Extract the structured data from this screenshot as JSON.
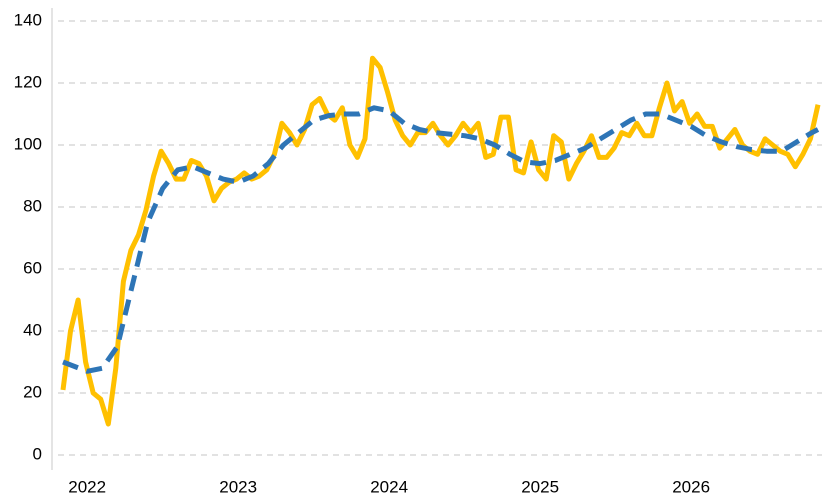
{
  "chart_data": {
    "type": "line",
    "xlim": [
      2021.84,
      2026.88
    ],
    "xticks": [
      2022,
      2023,
      2024,
      2025,
      2026
    ],
    "ylim": [
      0,
      140
    ],
    "yticks": [
      0,
      20,
      40,
      60,
      80,
      100,
      120,
      140
    ],
    "grid": true,
    "series": [
      {
        "color": "#ffc000",
        "style": "solid",
        "x": [
          2021.84,
          2021.89,
          2021.94,
          2021.99,
          2022.04,
          2022.09,
          2022.14,
          2022.19,
          2022.24,
          2022.29,
          2022.34,
          2022.39,
          2022.44,
          2022.49,
          2022.54,
          2022.59,
          2022.64,
          2022.69,
          2022.74,
          2022.79,
          2022.84,
          2022.89,
          2022.94,
          2022.99,
          2023.04,
          2023.09,
          2023.14,
          2023.19,
          2023.24,
          2023.29,
          2023.34,
          2023.39,
          2023.44,
          2023.49,
          2023.54,
          2023.59,
          2023.64,
          2023.69,
          2023.74,
          2023.79,
          2023.84,
          2023.89,
          2023.94,
          2023.99,
          2024.04,
          2024.09,
          2024.14,
          2024.19,
          2024.24,
          2024.29,
          2024.34,
          2024.39,
          2024.44,
          2024.49,
          2024.54,
          2024.59,
          2024.64,
          2024.69,
          2024.74,
          2024.79,
          2024.84,
          2024.89,
          2024.94,
          2024.99,
          2025.04,
          2025.09,
          2025.14,
          2025.19,
          2025.24,
          2025.29,
          2025.34,
          2025.39,
          2025.44,
          2025.49,
          2025.54,
          2025.59,
          2025.64,
          2025.69,
          2025.74,
          2025.79,
          2025.84,
          2025.89,
          2025.94,
          2025.99,
          2026.04,
          2026.09,
          2026.14,
          2026.19,
          2026.24,
          2026.29,
          2026.34,
          2026.39,
          2026.44,
          2026.49,
          2026.54,
          2026.59,
          2026.64,
          2026.69,
          2026.74,
          2026.79,
          2026.84
        ],
        "values": [
          21,
          40,
          50,
          30,
          20,
          18,
          10,
          28,
          56,
          66,
          71,
          79,
          90,
          98,
          94,
          89,
          89,
          95,
          94,
          90,
          82,
          86,
          88,
          89,
          91,
          89,
          90,
          92,
          97,
          107,
          104,
          100,
          105,
          113,
          115,
          110,
          108,
          112,
          100,
          96,
          102,
          128,
          125,
          117,
          108,
          103,
          100,
          104,
          104,
          107,
          103,
          100,
          103,
          107,
          104,
          107,
          96,
          97,
          109,
          109,
          92,
          91,
          101,
          92,
          89,
          103,
          101,
          89,
          94,
          98,
          103,
          96,
          96,
          99,
          104,
          103,
          107,
          103,
          103,
          112,
          120,
          111,
          114,
          107,
          110,
          106,
          106,
          99,
          102,
          105,
          100,
          98,
          97,
          102,
          100,
          98,
          97,
          93,
          97,
          102,
          113
        ]
      },
      {
        "color": "#2e75b6",
        "style": "dashed",
        "x": [
          2021.84,
          2022.0,
          2022.1,
          2022.2,
          2022.3,
          2022.4,
          2022.5,
          2022.6,
          2022.7,
          2022.8,
          2022.9,
          2023.0,
          2023.1,
          2023.2,
          2023.3,
          2023.4,
          2023.5,
          2023.6,
          2023.7,
          2023.8,
          2023.9,
          2024.0,
          2024.1,
          2024.2,
          2024.3,
          2024.4,
          2024.5,
          2024.6,
          2024.7,
          2024.8,
          2024.9,
          2025.0,
          2025.1,
          2025.2,
          2025.3,
          2025.4,
          2025.5,
          2025.6,
          2025.7,
          2025.8,
          2025.9,
          2026.0,
          2026.1,
          2026.2,
          2026.3,
          2026.4,
          2026.5,
          2026.6,
          2026.7,
          2026.8,
          2026.84
        ],
        "values": [
          30,
          27,
          28,
          35,
          55,
          75,
          86,
          92,
          93,
          91,
          89,
          88,
          90,
          94,
          100,
          104,
          108,
          109.5,
          110,
          110,
          112,
          111,
          107,
          105,
          104,
          103.5,
          103,
          102,
          100,
          97,
          94.5,
          94,
          95,
          97,
          99,
          102,
          105,
          108,
          110,
          110,
          108,
          106,
          103,
          101,
          99.5,
          98.5,
          98,
          98,
          101,
          104,
          105
        ]
      }
    ]
  }
}
